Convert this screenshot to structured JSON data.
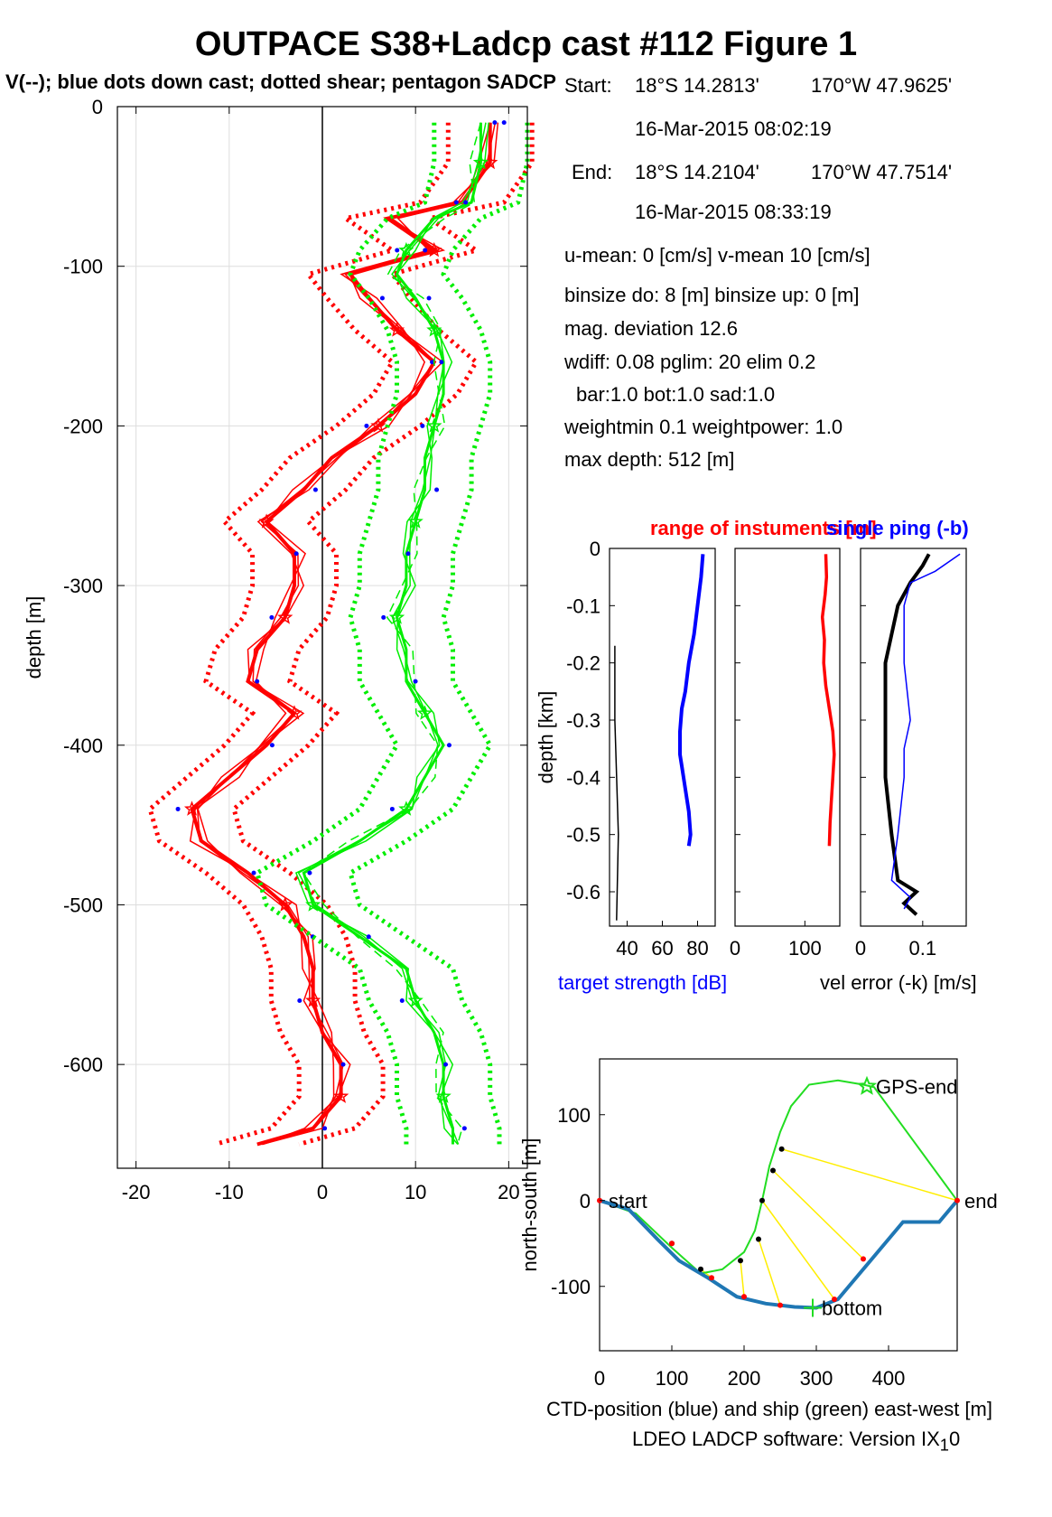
{
  "title": "OUTPACE S38+Ladcp cast #112  Figure 1",
  "subtitle": "V(--); blue dots down cast; dotted shear; pentagon SADCP",
  "info": {
    "start_label": "Start:",
    "start_lat": "18°S 14.2813'",
    "start_lon": "170°W 47.9625'",
    "start_time": "16-Mar-2015 08:02:19",
    "end_label": "End:",
    "end_lat": "18°S 14.2104'",
    "end_lon": "170°W 47.7514'",
    "end_time": "16-Mar-2015 08:33:19",
    "mean": "u-mean:   0 [cm/s]    v-mean  10 [cm/s]",
    "binsize": "binsize do: 8 [m]  binsize up:  0 [m]",
    "magdev": "mag. deviation 12.6",
    "wdiff": "wdiff: 0.08  pglim: 20  elim 0.2",
    "bar": "bar:1.0 bot:1.0 sad:1.0",
    "weight": "weightmin 0.1  weightpower: 1.0",
    "maxdepth": "max depth: 512 [m]"
  },
  "footer": "LDEO LADCP software: Version IX",
  "footer_sub": "1",
  "footer_tail": "0",
  "colors": {
    "u": "#ff0000",
    "v": "#00ee00",
    "dots": "#0000ff",
    "grid": "#dddddd",
    "ts": "#0000ff",
    "ctd": "#1f77b4",
    "ship": "#22dd22",
    "link": "#ffee00"
  },
  "chart_data": [
    {
      "type": "line",
      "panel": "velocity-profile",
      "xlabel": "",
      "ylabel": "depth [m]",
      "xlim": [
        -22,
        22
      ],
      "ylim": [
        -665,
        0
      ],
      "xticks": [
        -20,
        -10,
        0,
        10,
        20
      ],
      "yticks": [
        0,
        -100,
        -200,
        -300,
        -400,
        -500,
        -600
      ],
      "grid": true,
      "depth": [
        -10,
        -35,
        -60,
        -70,
        -90,
        -105,
        -120,
        -140,
        -160,
        -180,
        -200,
        -220,
        -240,
        -260,
        -280,
        -300,
        -320,
        -340,
        -360,
        -380,
        -400,
        -420,
        -440,
        -460,
        -480,
        -500,
        -520,
        -540,
        -560,
        -580,
        -600,
        -620,
        -640,
        -650
      ],
      "series": [
        {
          "component": "u",
          "values": [
            18,
            18,
            15,
            7,
            12,
            3,
            5,
            8,
            12,
            10,
            6,
            1,
            -2,
            -6,
            -3,
            -3,
            -4,
            -7,
            -8,
            -3,
            -6,
            -10,
            -14,
            -13,
            -8,
            -4,
            -2,
            -1,
            -1,
            0,
            2,
            2,
            -1,
            -7
          ],
          "half_width": 4.5
        },
        {
          "component": "v",
          "values": [
            17,
            17,
            16,
            12,
            9,
            8,
            10,
            12,
            13,
            13,
            12,
            11,
            11,
            10,
            9,
            9,
            8,
            9,
            9,
            11,
            13,
            11,
            9,
            4,
            -2,
            -1,
            4,
            9,
            10,
            12,
            13,
            13,
            14,
            14
          ],
          "half_width": 5
        }
      ]
    },
    {
      "type": "line",
      "panel": "target-strength",
      "title": "",
      "xlabel": "target strength [dB]",
      "ylabel": "depth [km]",
      "xlim": [
        30,
        90
      ],
      "ylim": [
        -0.66,
        0
      ],
      "xticks": [
        40,
        60,
        80
      ],
      "yticks": [
        0,
        -0.1,
        -0.2,
        -0.3,
        -0.4,
        -0.5,
        -0.6
      ],
      "series": [
        {
          "name": "target strength",
          "depth_km": [
            -0.01,
            -0.05,
            -0.1,
            -0.15,
            -0.2,
            -0.25,
            -0.28,
            -0.32,
            -0.36,
            -0.38,
            -0.42,
            -0.46,
            -0.5,
            -0.52
          ],
          "values": [
            83,
            82,
            80,
            78,
            75,
            73,
            71,
            70,
            70,
            71,
            73,
            75,
            76,
            75
          ]
        },
        {
          "name": "",
          "depth_km": [
            -0.17,
            -0.3,
            -0.5,
            -0.65
          ],
          "values": [
            33,
            33,
            35,
            34
          ]
        }
      ]
    },
    {
      "type": "line",
      "panel": "range-of-instruments",
      "title": "range of instuments [m]",
      "xlim": [
        0,
        150
      ],
      "ylim": [
        -0.66,
        0
      ],
      "xticks": [
        0,
        100
      ],
      "series": [
        {
          "name": "range",
          "depth_km": [
            -0.01,
            -0.05,
            -0.08,
            -0.12,
            -0.16,
            -0.2,
            -0.24,
            -0.28,
            -0.32,
            -0.36,
            -0.4,
            -0.44,
            -0.48,
            -0.52
          ],
          "values": [
            130,
            131,
            129,
            125,
            128,
            127,
            130,
            135,
            140,
            142,
            140,
            138,
            136,
            135
          ]
        }
      ]
    },
    {
      "type": "line",
      "panel": "velocity-error",
      "title": "single ping (-b)",
      "xlabel": "vel error (-k) [m/s]",
      "xlim": [
        0,
        0.17
      ],
      "ylim": [
        -0.66,
        0
      ],
      "xticks": [
        0,
        0.1
      ],
      "series": [
        {
          "name": "",
          "depth_km": [
            -0.01,
            -0.03,
            -0.06,
            -0.1,
            -0.15,
            -0.2,
            -0.3,
            -0.4,
            -0.5,
            -0.58,
            -0.6,
            -0.62,
            -0.64
          ],
          "values": [
            0.11,
            0.1,
            0.08,
            0.06,
            0.05,
            0.04,
            0.04,
            0.04,
            0.05,
            0.06,
            0.09,
            0.07,
            0.09
          ]
        },
        {
          "name": "",
          "depth_km": [
            -0.01,
            -0.04,
            -0.06,
            -0.1,
            -0.2,
            -0.3,
            -0.35,
            -0.4,
            -0.5,
            -0.58,
            -0.61,
            -0.63
          ],
          "values": [
            0.16,
            0.12,
            0.08,
            0.07,
            0.07,
            0.08,
            0.07,
            0.07,
            0.06,
            0.05,
            0.08,
            0.07
          ]
        }
      ]
    },
    {
      "type": "line",
      "panel": "navigation",
      "xlabel": "CTD-position (blue) and ship (green) east-west [m]",
      "ylabel": "north-south [m]",
      "xlim": [
        0,
        495
      ],
      "ylim": [
        -175,
        165
      ],
      "xticks": [
        0,
        100,
        200,
        300,
        400
      ],
      "yticks": [
        100,
        0,
        -100
      ],
      "labels": {
        "start": "start",
        "end": "end",
        "gps_end": "GPS-end",
        "bottom": "bottom"
      },
      "ctd": {
        "x": [
          0,
          40,
          80,
          110,
          150,
          190,
          230,
          270,
          300,
          330,
          350,
          380,
          420,
          445,
          470,
          495
        ],
        "y": [
          0,
          -10,
          -45,
          -70,
          -90,
          -112,
          -120,
          -124,
          -125,
          -115,
          -95,
          -65,
          -25,
          -25,
          -25,
          0
        ]
      },
      "ship": {
        "x": [
          0,
          50,
          100,
          140,
          170,
          200,
          215,
          225,
          235,
          250,
          265,
          290,
          330,
          365,
          380,
          495
        ],
        "y": [
          0,
          -15,
          -55,
          -85,
          -80,
          -60,
          -35,
          0,
          40,
          80,
          110,
          135,
          140,
          135,
          132,
          0
        ]
      },
      "ship_dots": {
        "x": [
          100,
          140,
          195,
          220,
          225,
          240,
          252
        ],
        "y": [
          -50,
          -80,
          -70,
          -45,
          0,
          35,
          60
        ]
      },
      "ctd_dots": {
        "x": [
          100,
          155,
          200,
          250,
          325,
          365,
          495
        ],
        "y": [
          -50,
          -90,
          -112,
          -122,
          -115,
          -68,
          0
        ]
      }
    }
  ]
}
